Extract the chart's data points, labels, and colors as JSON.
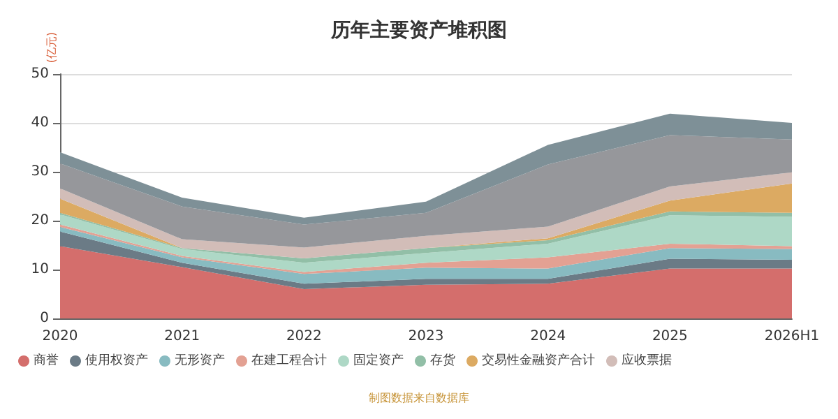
{
  "chart_data": {
    "type": "area",
    "title": "历年主要资产堆积图",
    "ylabel": "(亿元)",
    "categories": [
      "2020",
      "2021",
      "2022",
      "2023",
      "2024",
      "2025",
      "2026H1"
    ],
    "stacked": true,
    "ylim": [
      0,
      50
    ],
    "yticks": [
      0,
      10,
      20,
      30,
      40,
      50
    ],
    "grid": "y",
    "legend": "bottom",
    "marker": "none",
    "annotations": [
      "制图数据来自数据库"
    ],
    "series": [
      {
        "name": "商誉",
        "color": "#d46e6c",
        "values": [
          14.8,
          10.5,
          6.0,
          6.9,
          7.1,
          10.2,
          10.2
        ]
      },
      {
        "name": "使用权资产",
        "color": "#6b7b86",
        "values": [
          3.0,
          0.9,
          1.1,
          1.2,
          1.0,
          2.0,
          1.8
        ]
      },
      {
        "name": "无形资产",
        "color": "#88bbc1",
        "values": [
          0.9,
          1.1,
          2.0,
          2.3,
          2.1,
          2.2,
          2.2
        ]
      },
      {
        "name": "在建工程合计",
        "color": "#e3a193",
        "values": [
          0.5,
          0.3,
          0.4,
          1.0,
          2.3,
          0.9,
          0.6
        ]
      },
      {
        "name": "固定资产",
        "color": "#aed8c6",
        "values": [
          2.1,
          1.4,
          1.9,
          2.0,
          2.8,
          5.8,
          6.0
        ]
      },
      {
        "name": "存货",
        "color": "#92bfa7",
        "values": [
          0.3,
          0.2,
          0.9,
          1.0,
          0.7,
          0.8,
          0.8
        ]
      },
      {
        "name": "交易性金融资产合计",
        "color": "#dcaa62",
        "values": [
          2.9,
          0,
          0,
          0,
          0.4,
          2.2,
          6.0
        ]
      },
      {
        "name": "应收票据",
        "color": "#d2bdb8",
        "values": [
          2.1,
          1.8,
          2.2,
          2.5,
          2.4,
          2.9,
          2.3
        ]
      },
      {
        "color": "#96979b",
        "values": [
          5.1,
          6.7,
          4.7,
          4.7,
          12.7,
          10.5,
          6.7
        ]
      },
      {
        "color": "#7e9097",
        "values": [
          2.3,
          1.8,
          1.4,
          2.3,
          4.0,
          4.4,
          3.4
        ]
      }
    ]
  }
}
